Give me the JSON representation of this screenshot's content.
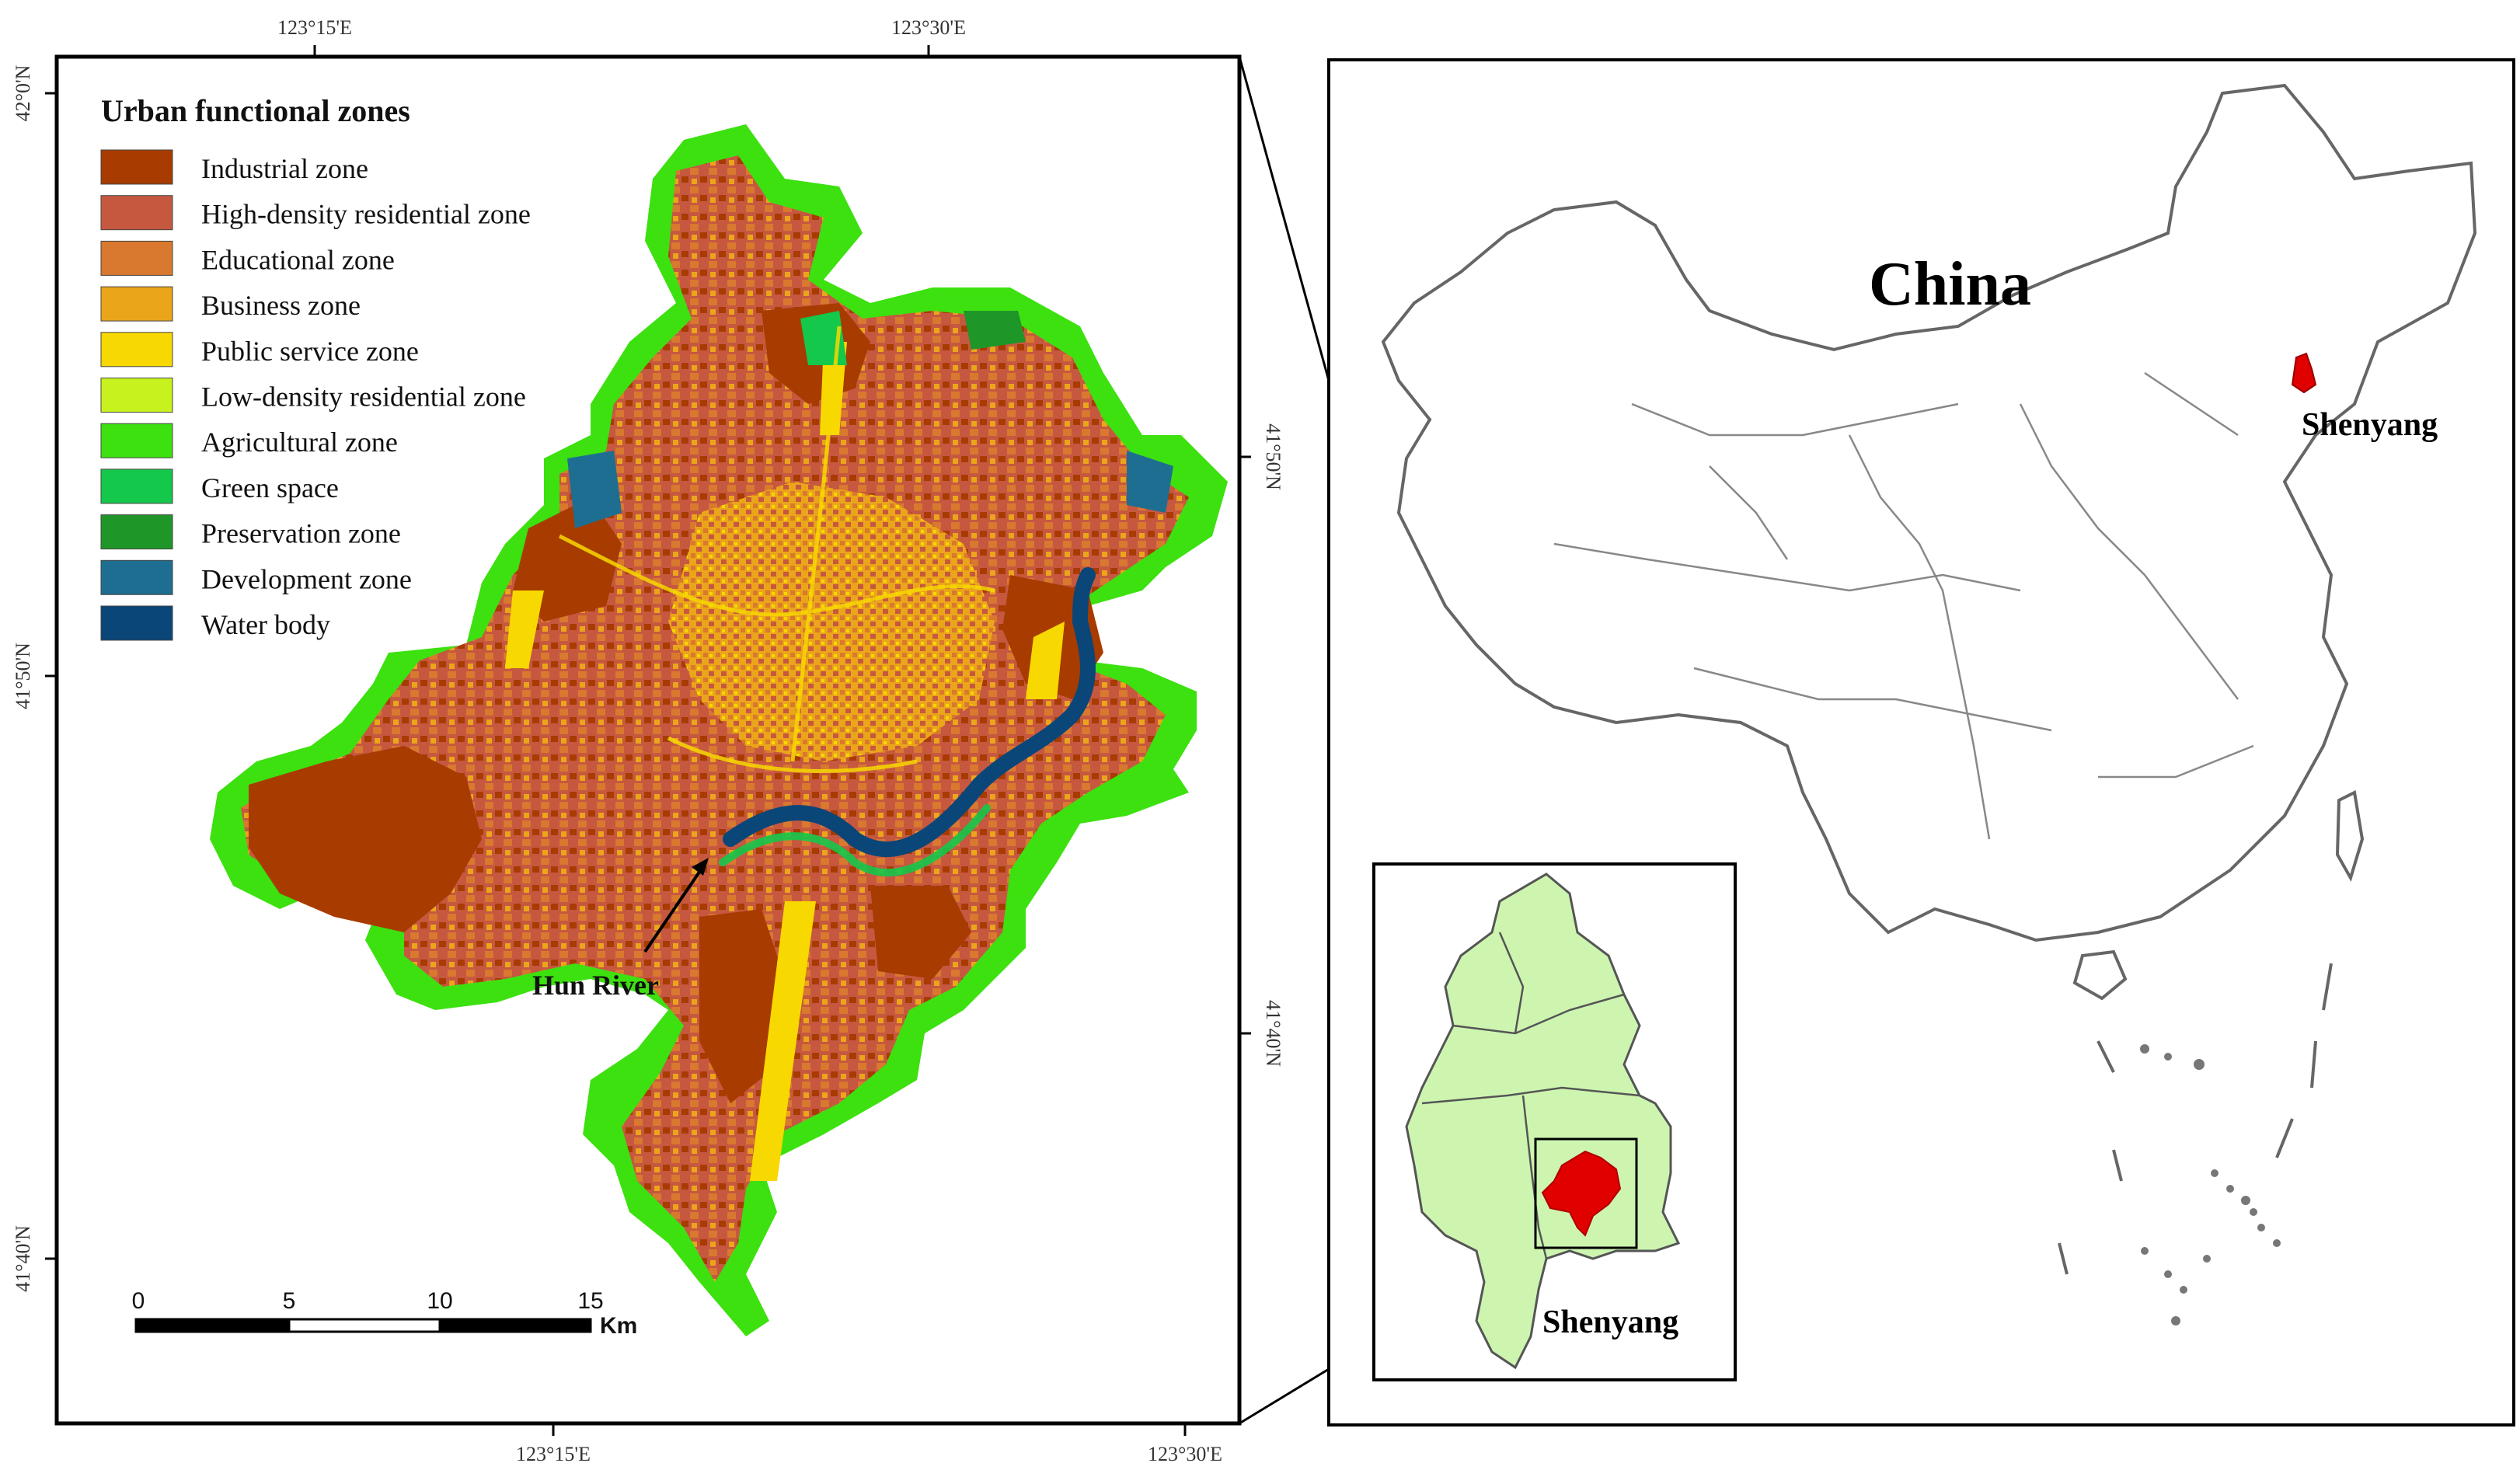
{
  "legend": {
    "title": "Urban functional zones",
    "items": [
      {
        "label": "Industrial zone",
        "color": "#A83B00"
      },
      {
        "label": "High-density residential zone",
        "color": "#C65840"
      },
      {
        "label": "Educational zone",
        "color": "#D9782F"
      },
      {
        "label": "Business zone",
        "color": "#EBA51A"
      },
      {
        "label": "Public service zone",
        "color": "#F7D800"
      },
      {
        "label": "Low-density residential zone",
        "color": "#C8F21E"
      },
      {
        "label": "Agricultural zone",
        "color": "#3CE10F"
      },
      {
        "label": "Green space",
        "color": "#14C84B"
      },
      {
        "label": "Preservation zone",
        "color": "#1E9628"
      },
      {
        "label": "Development zone",
        "color": "#1E6E91"
      },
      {
        "label": "Water body",
        "color": "#0A4678"
      }
    ]
  },
  "coordinates": {
    "top": [
      "123°15'E",
      "123°30'E"
    ],
    "bottom": [
      "123°15'E",
      "123°30'E"
    ],
    "left": [
      "42°0'N",
      "41°50'N",
      "41°40'N"
    ],
    "right": [
      "41°50'N",
      "41°40'N"
    ]
  },
  "scale_bar": {
    "ticks": [
      "0",
      "5",
      "10",
      "15"
    ],
    "unit": "Km"
  },
  "annotations": {
    "river": "Hun River"
  },
  "inset": {
    "country": "China",
    "city_on_country": "Shenyang",
    "city_on_province": "Shenyang",
    "highlight_color": "#E00000",
    "province_fill": "#CDF5B0"
  }
}
